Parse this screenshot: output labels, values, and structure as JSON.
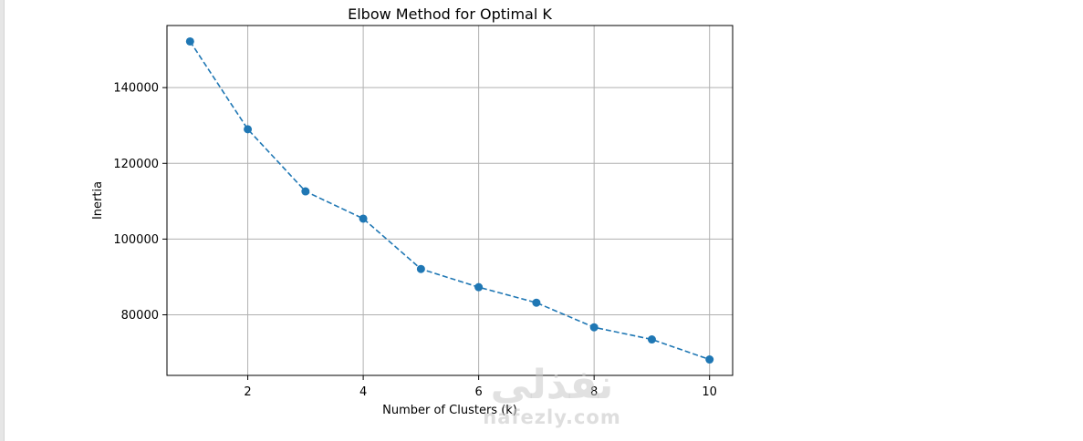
{
  "chart_data": {
    "type": "line",
    "title": "Elbow Method for Optimal K",
    "xlabel": "Number of Clusters (k)",
    "ylabel": "Inertia",
    "x": [
      1,
      2,
      3,
      4,
      5,
      6,
      7,
      8,
      9,
      10
    ],
    "series": [
      {
        "values": [
          152200,
          129000,
          112600,
          105400,
          92100,
          87300,
          83200,
          76700,
          73500,
          68200
        ],
        "color": "#1f77b4",
        "line_style": "dashed",
        "marker": "circle"
      }
    ],
    "x_ticks": [
      2,
      4,
      6,
      8,
      10
    ],
    "x_tick_labels": [
      "2",
      "4",
      "6",
      "8",
      "10"
    ],
    "y_ticks": [
      80000,
      100000,
      120000,
      140000
    ],
    "y_tick_labels": [
      "80000",
      "100000",
      "120000",
      "140000"
    ],
    "xlim": [
      0.6,
      10.4
    ],
    "ylim": [
      64000,
      156400
    ],
    "grid": true,
    "colors": {
      "series": "#1f77b4",
      "grid": "#b0b0b0",
      "axes": "#000000",
      "text": "#000000"
    }
  },
  "watermark": {
    "arabic": "نفذلي",
    "latin": "nafezly.com"
  }
}
